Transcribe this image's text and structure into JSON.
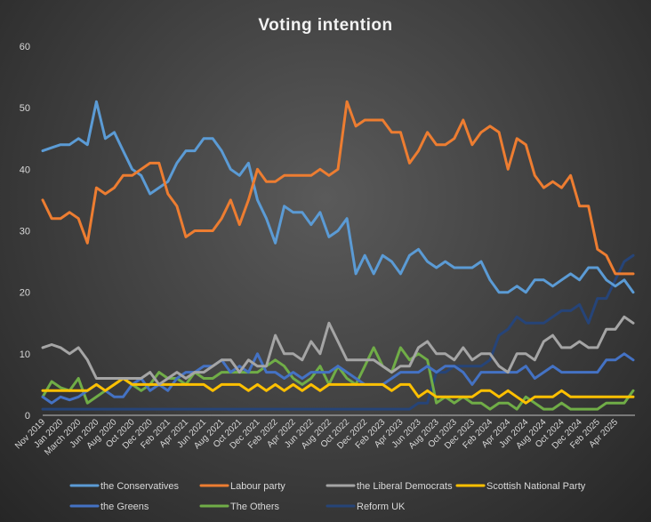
{
  "chart_data": {
    "type": "line",
    "title": "Voting  intention",
    "xlabel": "",
    "ylabel": "",
    "ylim": [
      0,
      60
    ],
    "yticks": [
      0,
      10,
      20,
      30,
      40,
      50,
      60
    ],
    "grid": false,
    "legend_position": "bottom",
    "x_tick_labels": [
      "Nov 2019",
      "Jan 2020",
      "March 2020",
      "Jun 2020",
      "Aug 2020",
      "Oct 2020",
      "Dec 2020",
      "Feb 2021",
      "Apr 2021",
      "Jun 2021",
      "Aug 2021",
      "Oct 2021",
      "Dec 2021",
      "Feb 2022",
      "Apr 2022",
      "Jun 2022",
      "Aug 2022",
      "Oct 2022",
      "Dec 2022",
      "Feb 2023",
      "Apr 2023",
      "Jun 2023",
      "Aug 2023",
      "Oct 2023",
      "Dec 2023",
      "Feb 2024",
      "Apr 2024",
      "Jun 2024",
      "Aug 2024",
      "Oct 2024",
      "Dec 2024",
      "Feb 2025",
      "Apr 2025"
    ],
    "series": [
      {
        "name": "the Conservatives",
        "color": "#5b9bd5",
        "values": [
          43,
          43.5,
          44,
          44,
          45,
          44,
          51,
          45,
          46,
          43,
          40,
          39,
          36,
          37,
          38,
          41,
          43,
          43,
          45,
          45,
          43,
          40,
          39,
          41,
          35,
          32,
          28,
          34,
          33,
          33,
          31,
          33,
          29,
          30,
          32,
          23,
          26,
          23,
          26,
          25,
          23,
          26,
          27,
          25,
          24,
          25,
          24,
          24,
          24,
          25,
          22,
          20,
          20,
          21,
          20,
          22,
          22,
          21,
          22,
          23,
          22,
          24,
          24,
          22,
          21,
          22,
          20
        ]
      },
      {
        "name": "Labour party",
        "color": "#ed7d31",
        "values": [
          35,
          32,
          32,
          33,
          32,
          28,
          37,
          36,
          37,
          39,
          39,
          40,
          41,
          41,
          36,
          34,
          29,
          30,
          30,
          30,
          32,
          35,
          31,
          35,
          40,
          38,
          38,
          39,
          39,
          39,
          39,
          40,
          39,
          40,
          51,
          47,
          48,
          48,
          48,
          46,
          46,
          41,
          43,
          46,
          44,
          44,
          45,
          48,
          44,
          46,
          47,
          46,
          40,
          45,
          44,
          39,
          37,
          38,
          37,
          39,
          34,
          34,
          27,
          26,
          23,
          23,
          23
        ]
      },
      {
        "name": "the Liberal Democrats",
        "color": "#a5a5a5",
        "values": [
          11,
          11.5,
          11,
          10,
          11,
          9,
          6,
          6,
          6,
          6,
          6,
          6,
          7,
          5,
          6,
          7,
          6,
          7,
          7,
          8,
          9,
          9,
          7,
          9,
          8,
          8,
          13,
          10,
          10,
          9,
          12,
          10,
          15,
          12,
          9,
          9,
          9,
          9,
          8,
          7,
          8,
          8,
          11,
          12,
          10,
          10,
          9,
          11,
          9,
          10,
          10,
          8,
          7,
          10,
          10,
          9,
          12,
          13,
          11,
          11,
          12,
          11,
          11,
          14,
          14,
          16,
          15
        ]
      },
      {
        "name": "Scottish National Party",
        "color": "#ffc000",
        "values": [
          4,
          4,
          4,
          4,
          4,
          4,
          5,
          4,
          5,
          6,
          5,
          5,
          5,
          5,
          5,
          5,
          5,
          5,
          5,
          4,
          5,
          5,
          5,
          4,
          5,
          4,
          5,
          4,
          5,
          4,
          5,
          4,
          5,
          5,
          5,
          5,
          5,
          5,
          5,
          4,
          5,
          5,
          3,
          4,
          3,
          3,
          3,
          3,
          3,
          4,
          4,
          3,
          4,
          3,
          2,
          3,
          3,
          3,
          4,
          3,
          3,
          3,
          3,
          3,
          3,
          3,
          3
        ]
      },
      {
        "name": "the Greens",
        "color": "#4472c4",
        "values": [
          3,
          2,
          3,
          2.5,
          3,
          4,
          5,
          4,
          3,
          3,
          5,
          6,
          4,
          5,
          4,
          6,
          7,
          7,
          8,
          8,
          9,
          7,
          8,
          7,
          10,
          7,
          7,
          6,
          7,
          6,
          7,
          7,
          7,
          8,
          7,
          6,
          5,
          5,
          5,
          6,
          7,
          7,
          7,
          8,
          7,
          8,
          8,
          7,
          5,
          7,
          7,
          7,
          7,
          7,
          8,
          6,
          7,
          8,
          7,
          7,
          7,
          7,
          7,
          9,
          9,
          10,
          9
        ]
      },
      {
        "name": "The Others",
        "color": "#70ad47",
        "values": [
          3,
          5.5,
          4.5,
          4,
          6,
          2,
          3,
          4,
          5,
          6,
          5,
          4,
          5,
          7,
          6,
          6,
          5,
          7,
          6,
          6,
          7,
          7,
          7,
          7,
          7,
          8,
          9,
          8,
          6,
          5,
          6,
          8,
          5,
          8,
          6,
          5,
          8,
          11,
          8,
          7,
          11,
          9,
          10,
          9,
          2,
          3,
          2,
          3,
          2,
          2,
          1,
          2,
          2,
          1,
          3,
          2,
          1,
          1,
          2,
          1,
          1,
          1,
          1,
          2,
          2,
          2,
          4
        ]
      },
      {
        "name": "Reform UK",
        "color": "#264478",
        "values": [
          1,
          1,
          1,
          1,
          1,
          1,
          1,
          1,
          1,
          1,
          1,
          1,
          1,
          1,
          1,
          1,
          1,
          1,
          1,
          1,
          1,
          1,
          1,
          1,
          1,
          1,
          1,
          1,
          1,
          1,
          1,
          1,
          1,
          1,
          1,
          1,
          1,
          1,
          1,
          1,
          1,
          1,
          2,
          2,
          7,
          7,
          8,
          8,
          8,
          8,
          9,
          13,
          14,
          16,
          15,
          15,
          15,
          16,
          17,
          17,
          18,
          15,
          19,
          19,
          22,
          25,
          26
        ]
      }
    ]
  }
}
